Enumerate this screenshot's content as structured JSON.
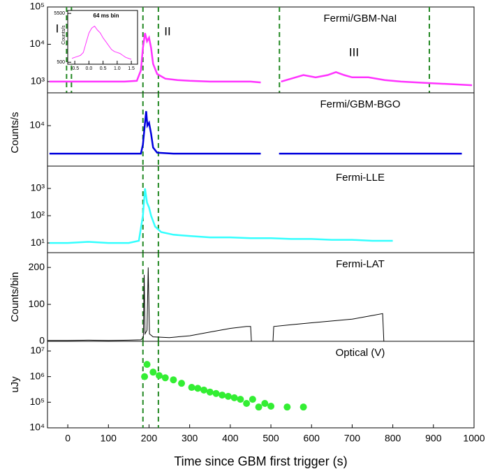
{
  "chart_data": [
    {
      "type": "line",
      "title": "Fermi/GBM-NaI",
      "log": true,
      "color": "#ff33ff",
      "x": [
        -45,
        -30,
        -15,
        0,
        20,
        50,
        80,
        110,
        140,
        170,
        180,
        185,
        190,
        195,
        200,
        205,
        210,
        220,
        240,
        270,
        300,
        350,
        400,
        450,
        475,
        490,
        525,
        550,
        580,
        610,
        640,
        660,
        680,
        700,
        740,
        780,
        820,
        860,
        900,
        950,
        995
      ],
      "values": [
        1000,
        1000,
        1000,
        1000,
        1000,
        1000,
        1000,
        1000,
        1000,
        1050,
        2000,
        8000,
        20000,
        12000,
        15000,
        8000,
        3000,
        1600,
        1200,
        1100,
        1050,
        1000,
        1000,
        1000,
        950,
        null,
        1000,
        1200,
        1500,
        1300,
        1500,
        1800,
        1500,
        1300,
        1300,
        1100,
        1000,
        950,
        900,
        850,
        800
      ],
      "xlim": [
        -50,
        1000
      ],
      "ylim": [
        500,
        100000
      ],
      "yticks": [
        {
          "value": 1000,
          "label": "10³"
        },
        {
          "value": 10000,
          "label": "10⁴"
        },
        {
          "value": 100000,
          "label": "10⁵"
        }
      ],
      "vlines": [
        -3,
        9,
        185,
        223,
        521,
        890
      ],
      "annotations": [
        "I",
        "II",
        "III"
      ],
      "inset": {
        "type": "line",
        "title": "64 ms bin",
        "ylabel": "Counts/s",
        "color": "#ff33ff",
        "x": [
          -0.6,
          -0.5,
          -0.4,
          -0.3,
          -0.2,
          -0.1,
          0,
          0.1,
          0.2,
          0.3,
          0.4,
          0.5,
          0.6,
          0.7,
          0.8,
          0.9,
          1.0,
          1.1,
          1.2,
          1.3,
          1.4,
          1.5
        ],
        "values": [
          900,
          1000,
          1100,
          1200,
          1500,
          2500,
          3500,
          4000,
          4200,
          3800,
          3500,
          3000,
          2600,
          2200,
          1800,
          1600,
          1500,
          1400,
          1200,
          1000,
          900,
          800
        ],
        "xlim": [
          -0.75,
          1.72
        ],
        "ylim": [
          300,
          5800
        ],
        "xticks": [
          -0.5,
          {
            "value": 0,
            "label": "0.0"
          },
          0.5,
          {
            "value": 1,
            "label": "1.0"
          },
          1.5
        ],
        "yticks": [
          500,
          5500
        ]
      }
    },
    {
      "type": "line",
      "title": "Fermi/GBM-BGO",
      "log": true,
      "color": "#0000dd",
      "ylabel": "Counts/s",
      "x": [
        -45,
        0,
        50,
        100,
        150,
        180,
        185,
        190,
        193,
        196,
        200,
        205,
        210,
        220,
        260,
        320,
        400,
        475,
        490,
        520,
        600,
        700,
        800,
        900,
        970
      ],
      "values": [
        1700,
        1700,
        1700,
        1700,
        1700,
        1700,
        3000,
        12000,
        25000,
        10000,
        12000,
        6000,
        2500,
        1800,
        1700,
        1700,
        1700,
        1700,
        null,
        1700,
        1700,
        1700,
        1700,
        1700,
        1700
      ],
      "xlim": [
        -50,
        1000
      ],
      "ylim": [
        770,
        80000
      ],
      "yticks": [
        {
          "value": 10000,
          "label": "10⁴"
        }
      ],
      "vlines": [
        185,
        223
      ]
    },
    {
      "type": "line",
      "title": "Fermi-LLE",
      "log": true,
      "color": "#33ffff",
      "x": [
        -45,
        0,
        50,
        100,
        150,
        175,
        185,
        190,
        195,
        200,
        205,
        215,
        230,
        260,
        300,
        350,
        400,
        450,
        500,
        550,
        600,
        650,
        700,
        750,
        800
      ],
      "values": [
        10,
        10,
        11,
        10,
        10,
        12,
        100,
        1000,
        300,
        200,
        100,
        40,
        25,
        20,
        18,
        16,
        16,
        15,
        15,
        14,
        14,
        13,
        13,
        12,
        12
      ],
      "xlim": [
        -50,
        1000
      ],
      "ylim": [
        4.4,
        6600
      ],
      "yticks": [
        {
          "value": 10,
          "label": "10¹"
        },
        {
          "value": 100,
          "label": "10²"
        },
        {
          "value": 1000,
          "label": "10³"
        }
      ],
      "vlines": [
        185,
        223
      ]
    },
    {
      "type": "line",
      "title": "Fermi-LAT",
      "log": false,
      "color": "#000000",
      "ylabel": "Counts/bin",
      "x": [
        -50,
        0,
        50,
        100,
        150,
        180,
        186,
        188,
        190,
        195,
        198,
        201,
        210,
        250,
        300,
        350,
        400,
        440,
        450,
        452,
        505,
        507,
        550,
        600,
        650,
        700,
        750,
        775,
        778
      ],
      "values": [
        2,
        2,
        3,
        2,
        3,
        4,
        10,
        180,
        20,
        30,
        200,
        20,
        12,
        10,
        15,
        25,
        35,
        40,
        40,
        0,
        0,
        40,
        45,
        50,
        55,
        60,
        70,
        75,
        0
      ],
      "xlim": [
        -50,
        1000
      ],
      "ylim": [
        0,
        240
      ],
      "yticks": [
        0,
        100,
        200
      ],
      "vlines": [
        185,
        223
      ]
    },
    {
      "type": "scatter",
      "title": "Optical (V)",
      "log": true,
      "color": "#33ee33",
      "ylabel": "uJy",
      "xlabel": "Time since GBM first trigger (s)",
      "x": [
        189,
        195,
        210,
        225,
        240,
        260,
        280,
        305,
        320,
        335,
        350,
        365,
        380,
        395,
        410,
        425,
        440,
        455,
        470,
        485,
        500,
        540,
        580
      ],
      "values": [
        1000000,
        3000000,
        1500000,
        1100000,
        900000,
        750000,
        550000,
        380000,
        350000,
        300000,
        250000,
        220000,
        190000,
        170000,
        150000,
        130000,
        90000,
        130000,
        65000,
        90000,
        70000,
        65000,
        65000
      ],
      "xlim": [
        -50,
        1000
      ],
      "ylim": [
        10000,
        24000000
      ],
      "yticks": [
        {
          "value": 10000,
          "label": "10⁴"
        },
        {
          "value": 100000,
          "label": "10⁵"
        },
        {
          "value": 1000000,
          "label": "10⁶"
        },
        {
          "value": 10000000,
          "label": "10⁷"
        }
      ],
      "xticks": [
        0,
        100,
        200,
        300,
        400,
        500,
        600,
        700,
        800,
        900,
        1000
      ],
      "vlines": [
        185,
        223
      ]
    }
  ]
}
